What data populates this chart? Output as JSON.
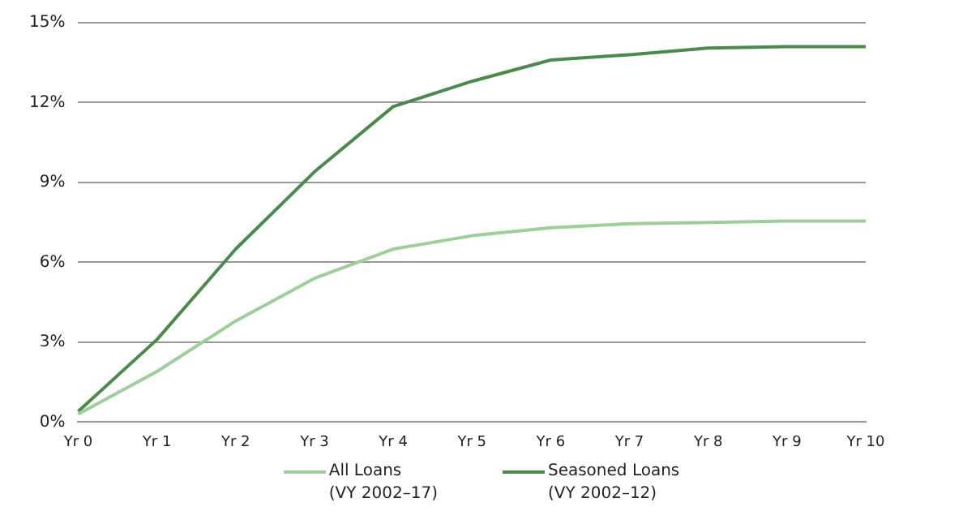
{
  "chart_data": {
    "type": "line",
    "categories": [
      "Yr 0",
      "Yr 1",
      "Yr 2",
      "Yr 3",
      "Yr 4",
      "Yr 5",
      "Yr 6",
      "Yr 7",
      "Yr 8",
      "Yr 9",
      "Yr 10"
    ],
    "series": [
      {
        "name": "All Loans\n(VY 2002–17)",
        "color": "#9dcf99",
        "values": [
          0.3,
          1.9,
          3.8,
          5.4,
          6.5,
          7.0,
          7.3,
          7.45,
          7.5,
          7.55,
          7.55
        ]
      },
      {
        "name": "Seasoned Loans\n(VY 2002–12)",
        "color": "#4a8a4a",
        "values": [
          0.4,
          3.1,
          6.5,
          9.4,
          11.85,
          12.8,
          13.6,
          13.8,
          14.05,
          14.1,
          14.1
        ]
      }
    ],
    "ylim": [
      0,
      15
    ],
    "yticks": [
      {
        "value": 0,
        "label": "0%"
      },
      {
        "value": 3,
        "label": "3%"
      },
      {
        "value": 6,
        "label": "6%"
      },
      {
        "value": 9,
        "label": "9%"
      },
      {
        "value": 12,
        "label": "12%"
      },
      {
        "value": 15,
        "label": "15%"
      }
    ],
    "grid": "y",
    "legend": "bottom",
    "marker": "none",
    "line_style": "solid"
  }
}
